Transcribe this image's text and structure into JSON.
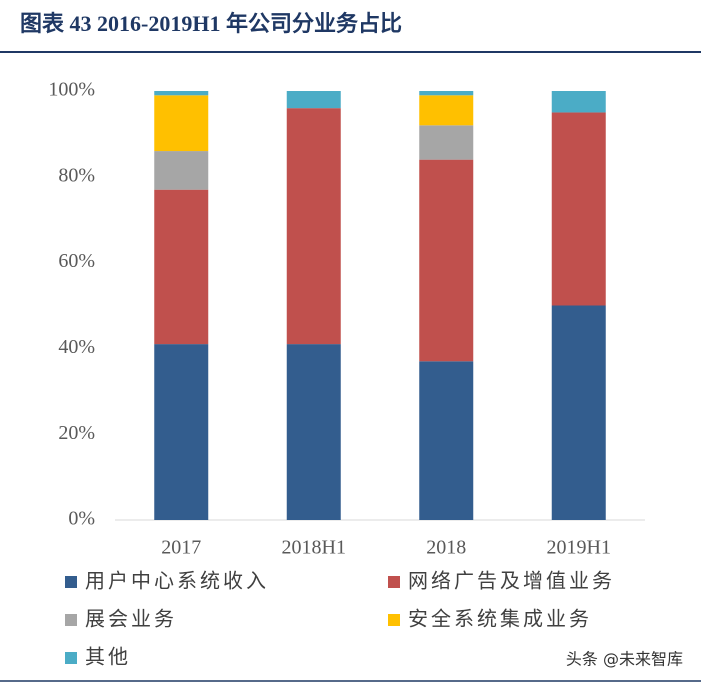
{
  "chart_data": {
    "type": "stacked_bar",
    "title": "图表 43 2016-2019H1 年公司分业务占比",
    "categories": [
      "2017",
      "2018H1",
      "2018",
      "2019H1"
    ],
    "series": [
      {
        "name": "用户中心系统收入",
        "color": "#335d8e",
        "values": [
          41,
          41,
          37,
          50
        ]
      },
      {
        "name": "网络广告及增值业务",
        "color": "#c0504d",
        "values": [
          36,
          55,
          47,
          45
        ]
      },
      {
        "name": "展会业务",
        "color": "#a6a6a6",
        "values": [
          9,
          0,
          8,
          0
        ]
      },
      {
        "name": "安全系统集成业务",
        "color": "#ffc000",
        "values": [
          13,
          0,
          7,
          0
        ]
      },
      {
        "name": "其他",
        "color": "#4bacc6",
        "values": [
          1,
          4,
          1,
          5
        ]
      }
    ],
    "ylim": [
      0,
      100
    ],
    "yticks": [
      {
        "value": 0,
        "label": "0%"
      },
      {
        "value": 20,
        "label": "20%"
      },
      {
        "value": 40,
        "label": "40%"
      },
      {
        "value": 60,
        "label": "60%"
      },
      {
        "value": 80,
        "label": "80%"
      },
      {
        "value": 100,
        "label": "100%"
      }
    ],
    "grid": false,
    "watermark": "头条 @未来智库"
  }
}
